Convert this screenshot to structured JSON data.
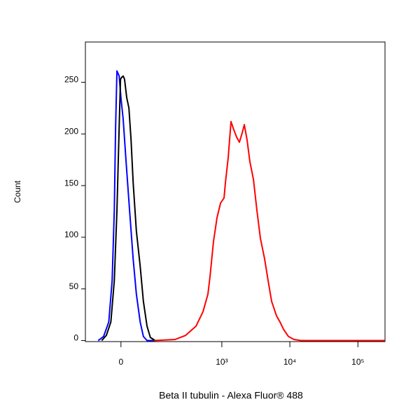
{
  "chart_data": {
    "type": "line",
    "xlabel": "Beta II tubulin - Alexa Fluor® 488",
    "ylabel": "Count",
    "xscale": "biexponential",
    "xlim": [
      -100,
      250000
    ],
    "xticks": [
      0,
      {
        "value": 1000,
        "label": "10³"
      },
      {
        "value": 10000,
        "label": "10⁴"
      },
      {
        "value": 100000,
        "label": "10⁵"
      }
    ],
    "ylim": [
      -1,
      289
    ],
    "yticks": [
      0,
      50,
      100,
      150,
      200,
      250
    ],
    "series": [
      {
        "color": "#0000ff",
        "x": [
          -56,
          -41,
          -28,
          -20,
          -15,
          -12,
          -9,
          -4,
          0,
          5,
          11.5,
          19.5,
          28,
          36,
          46,
          55,
          66,
          90
        ],
        "values": [
          0,
          4,
          18,
          58,
          126,
          207,
          261,
          256,
          235,
          214,
          173,
          126,
          79,
          45,
          18,
          4,
          0,
          0
        ]
      },
      {
        "color": "#000000",
        "x": [
          -46,
          -34,
          -23,
          -15,
          -9,
          -4,
          -1,
          2,
          5,
          8,
          13,
          18,
          23,
          28,
          36,
          46,
          55,
          66,
          77,
          95
        ],
        "values": [
          0,
          5,
          18,
          58,
          126,
          207,
          253,
          255,
          256,
          253,
          235,
          225,
          194,
          153,
          106,
          72,
          38,
          14,
          3,
          0
        ]
      },
      {
        "color": "#ff0000",
        "x": [
          90,
          200,
          290,
          416,
          528,
          624,
          670,
          754,
          850,
          957,
          1078,
          1130,
          1241,
          1365,
          1501,
          1649,
          1813,
          1994,
          2142,
          2354,
          2588,
          2917,
          3281,
          3691,
          4257,
          4794,
          5395,
          6362,
          7163,
          8064,
          9511,
          11500,
          14570,
          250000
        ],
        "values": [
          0,
          1,
          5,
          14,
          28,
          45,
          62,
          96,
          119,
          133,
          138,
          153,
          177,
          212,
          204,
          197,
          192,
          201,
          209,
          194,
          173,
          156,
          126,
          99,
          79,
          58,
          38,
          24,
          18,
          11,
          4,
          1,
          0,
          0
        ]
      }
    ]
  }
}
